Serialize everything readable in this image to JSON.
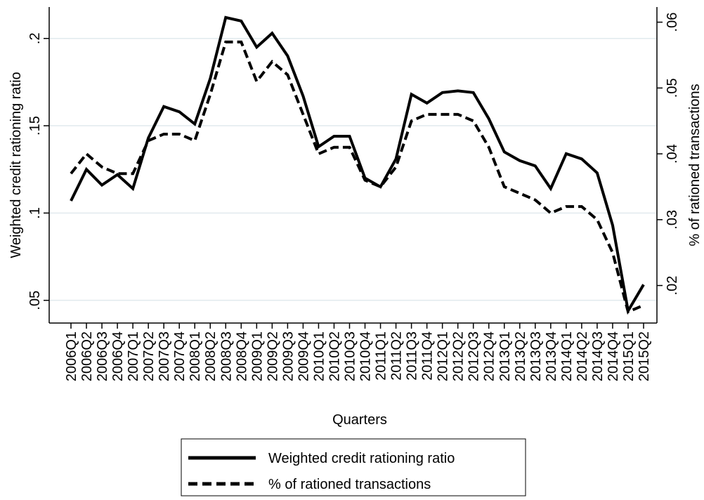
{
  "chart_data": {
    "type": "line",
    "x_label": "Quarters",
    "y_label": "Weighted credit rationing ratio",
    "y2_label": "% of rationed transactions",
    "categories": [
      "2006Q1",
      "2006Q2",
      "2006Q3",
      "2006Q4",
      "2007Q1",
      "2007Q2",
      "2007Q3",
      "2007Q4",
      "2008Q1",
      "2008Q2",
      "2008Q3",
      "2008Q4",
      "2009Q1",
      "2009Q2",
      "2009Q3",
      "2009Q4",
      "2010Q1",
      "2010Q2",
      "2010Q3",
      "2010Q4",
      "2011Q1",
      "2011Q2",
      "2011Q3",
      "2011Q4",
      "2012Q1",
      "2012Q2",
      "2012Q3",
      "2012Q4",
      "2013Q1",
      "2013Q2",
      "2013Q3",
      "2013Q4",
      "2014Q1",
      "2014Q2",
      "2014Q3",
      "2014Q4",
      "2015Q1",
      "2015Q2"
    ],
    "series": [
      {
        "name": "Weighted credit rationing ratio",
        "color": "#000000",
        "dash": "solid",
        "values": [
          0.107,
          0.125,
          0.116,
          0.122,
          0.114,
          0.143,
          0.161,
          0.158,
          0.151,
          0.177,
          0.212,
          0.21,
          0.195,
          0.203,
          0.19,
          0.167,
          0.138,
          0.144,
          0.144,
          0.12,
          0.115,
          0.131,
          0.168,
          0.163,
          0.169,
          0.17,
          0.169,
          0.154,
          0.135,
          0.13,
          0.127,
          0.114,
          0.134,
          0.131,
          0.123,
          0.093,
          0.044,
          0.059
        ]
      },
      {
        "name": "% of rationed transactions",
        "color": "#000000",
        "dash": "dashed",
        "axis": "y2",
        "values": [
          0.037,
          0.04,
          0.038,
          0.037,
          0.037,
          0.042,
          0.043,
          0.043,
          0.042,
          0.049,
          0.057,
          0.057,
          0.051,
          0.054,
          0.052,
          0.046,
          0.04,
          0.041,
          0.041,
          0.036,
          0.035,
          0.038,
          0.045,
          0.046,
          0.046,
          0.046,
          0.045,
          0.041,
          0.035,
          0.034,
          0.033,
          0.031,
          0.032,
          0.032,
          0.03,
          0.025,
          0.016,
          0.017
        ]
      }
    ],
    "ylim": [
      0.037,
      0.218
    ],
    "yticks": [
      {
        "value": 0.05,
        "label": ".05"
      },
      {
        "value": 0.1,
        "label": ".1"
      },
      {
        "value": 0.15,
        "label": ".15"
      },
      {
        "value": 0.2,
        "label": ".2"
      }
    ],
    "y2lim": [
      0.0143,
      0.0623
    ],
    "y2ticks": [
      {
        "value": 0.02,
        "label": ".02"
      },
      {
        "value": 0.03,
        "label": ".03"
      },
      {
        "value": 0.04,
        "label": ".04"
      },
      {
        "value": 0.05,
        "label": ".05"
      },
      {
        "value": 0.06,
        "label": ".06"
      }
    ],
    "grid": true
  }
}
